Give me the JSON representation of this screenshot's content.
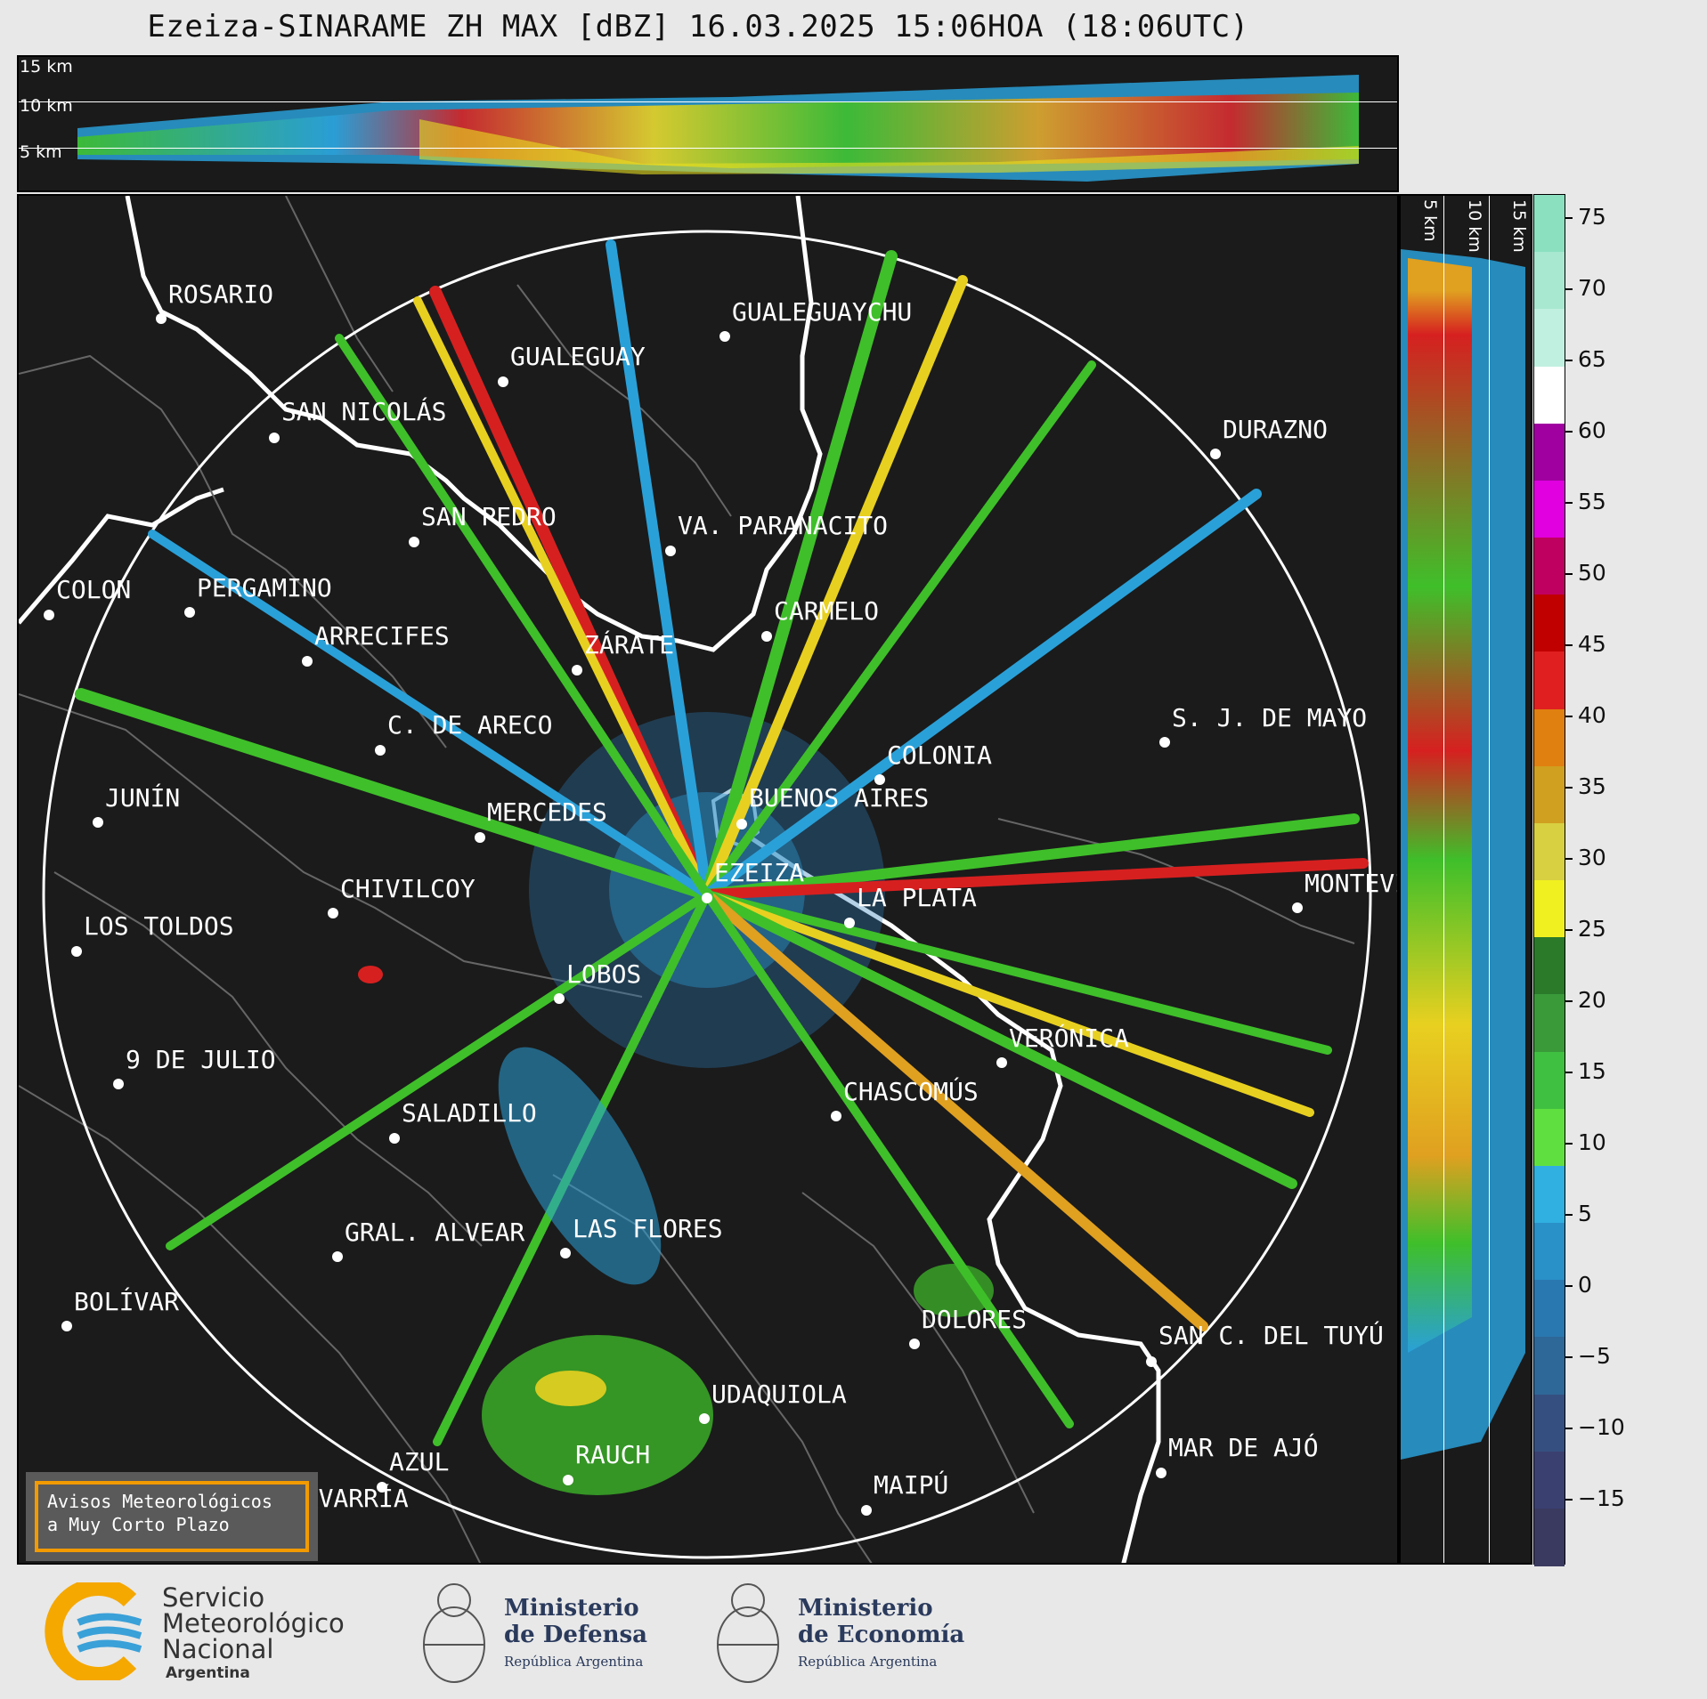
{
  "title": "Ezeiza-SINARAME ZH MAX [dBZ] 16.03.2025 15:06HOA (18:06UTC)",
  "top_panel": {
    "heights": [
      "15 km",
      "10 km",
      "5 km"
    ]
  },
  "side_panel": {
    "heights": [
      "5 km",
      "10 km",
      "15 km"
    ]
  },
  "colorbar": {
    "ticks": [
      "75",
      "70",
      "65",
      "60",
      "55",
      "50",
      "45",
      "40",
      "35",
      "30",
      "25",
      "20",
      "15",
      "10",
      "5",
      "0",
      "−5",
      "−10",
      "−15"
    ]
  },
  "cities": [
    {
      "name": "ROSARIO"
    },
    {
      "name": "GUALEGUAYCHU"
    },
    {
      "name": "GUALEGUAY"
    },
    {
      "name": "SAN NICOLÁS"
    },
    {
      "name": "DURAZNO"
    },
    {
      "name": "SAN PEDRO"
    },
    {
      "name": "VA. PARANACITO"
    },
    {
      "name": "COLON"
    },
    {
      "name": "PERGAMINO"
    },
    {
      "name": "CARMELO"
    },
    {
      "name": "ARRECIFES"
    },
    {
      "name": "ZÁRATE"
    },
    {
      "name": "C. DE ARECO"
    },
    {
      "name": "S. J. DE MAYO"
    },
    {
      "name": "COLONIA"
    },
    {
      "name": "JUNÍN"
    },
    {
      "name": "BUENOS AIRES"
    },
    {
      "name": "MERCEDES"
    },
    {
      "name": "EZEIZA"
    },
    {
      "name": "MONTEVIDEO"
    },
    {
      "name": "CHIVILCOY"
    },
    {
      "name": "LA PLATA"
    },
    {
      "name": "LOS TOLDOS"
    },
    {
      "name": "LOBOS"
    },
    {
      "name": "VERÓNICA"
    },
    {
      "name": "9 DE JULIO"
    },
    {
      "name": "CHASCOMÚS"
    },
    {
      "name": "SALADILLO"
    },
    {
      "name": "GRAL. ALVEAR"
    },
    {
      "name": "LAS FLORES"
    },
    {
      "name": "BOLÍVAR"
    },
    {
      "name": "DOLORES"
    },
    {
      "name": "SAN C. DEL TUYÚ"
    },
    {
      "name": "UDAQUIOLA"
    },
    {
      "name": "MAR DE AJÓ"
    },
    {
      "name": "AZUL"
    },
    {
      "name": "RAUCH"
    },
    {
      "name": "OLAVARRÍA"
    },
    {
      "name": "MAIPÚ"
    }
  ],
  "avisos": {
    "line1": "Avisos Meteorológicos",
    "line2": "a Muy Corto Plazo"
  },
  "footer": {
    "smn": {
      "line1": "Servicio",
      "line2": "Meteorológico",
      "line3": "Nacional",
      "line4": "Argentina"
    },
    "defensa": {
      "line1": "Ministerio",
      "line2": "de Defensa",
      "sub": "República Argentina"
    },
    "economia": {
      "line1": "Ministerio",
      "line2": "de Economía",
      "sub": "República Argentina"
    }
  }
}
